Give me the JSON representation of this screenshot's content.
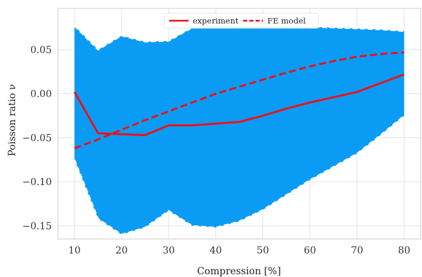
{
  "chart_data": {
    "type": "line",
    "title": "",
    "xlabel": "Compression [%]",
    "ylabel": "Poisson ratio ν",
    "xlim": [
      6.5,
      83.5
    ],
    "ylim": [
      -0.165,
      0.097
    ],
    "xticks": [
      10,
      20,
      30,
      40,
      50,
      60,
      70,
      80
    ],
    "yticks": [
      -0.15,
      -0.1,
      -0.05,
      0.0,
      0.05
    ],
    "x_tick_labels": [
      "10",
      "20",
      "30",
      "40",
      "50",
      "60",
      "70",
      "80"
    ],
    "y_tick_labels": [
      "−0.15",
      "−0.10",
      "−0.05",
      "0.00",
      "0.05"
    ],
    "grid": true,
    "legend_position": "top-center",
    "series": [
      {
        "name": "experiment",
        "style": "solid",
        "color": "#e8131b",
        "x": [
          10,
          15,
          20,
          25,
          30,
          35,
          40,
          45,
          50,
          55,
          60,
          65,
          70,
          75,
          80
        ],
        "y": [
          0.002,
          -0.045,
          -0.046,
          -0.047,
          -0.036,
          -0.036,
          -0.034,
          -0.032,
          -0.025,
          -0.017,
          -0.01,
          -0.004,
          0.002,
          0.012,
          0.022
        ]
      },
      {
        "name": "FE model",
        "style": "dashed",
        "color": "#e8131b",
        "x": [
          10,
          15,
          20,
          25,
          30,
          35,
          40,
          45,
          50,
          55,
          60,
          65,
          70,
          75,
          80
        ],
        "y": [
          -0.062,
          -0.052,
          -0.041,
          -0.03,
          -0.02,
          -0.01,
          0.0,
          0.008,
          0.016,
          0.024,
          0.031,
          0.037,
          0.042,
          0.045,
          0.047
        ]
      }
    ],
    "band": {
      "color": "#0a9cf5",
      "x": [
        10,
        15,
        20,
        25,
        30,
        35,
        40,
        45,
        50,
        55,
        60,
        65,
        70,
        75,
        80
      ],
      "upper": [
        0.077,
        0.05,
        0.066,
        0.059,
        0.06,
        0.075,
        0.078,
        0.077,
        0.077,
        0.077,
        0.076,
        0.075,
        0.074,
        0.073,
        0.071
      ],
      "lower": [
        -0.075,
        -0.142,
        -0.16,
        -0.152,
        -0.133,
        -0.15,
        -0.152,
        -0.145,
        -0.132,
        -0.115,
        -0.098,
        -0.083,
        -0.068,
        -0.047,
        -0.025
      ]
    }
  }
}
